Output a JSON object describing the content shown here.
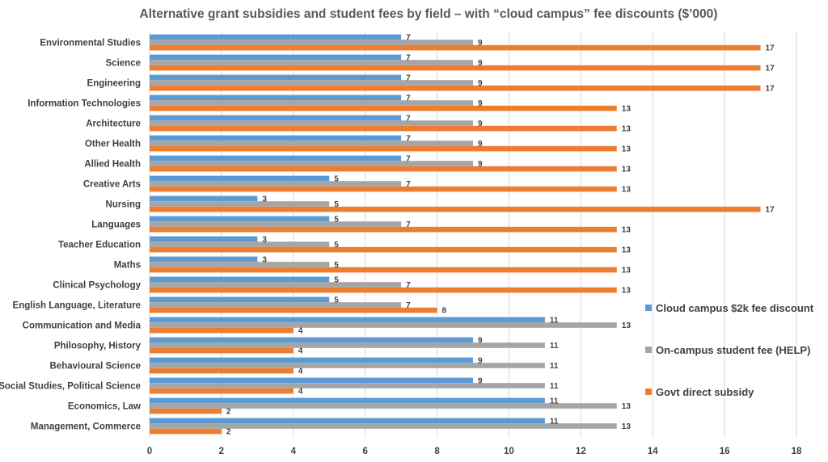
{
  "chart_data": {
    "type": "bar",
    "orientation": "horizontal",
    "title": "Alternative grant subsidies and student fees by field – with “cloud campus” fee discounts ($’000)",
    "xlabel": "",
    "ylabel": "",
    "xlim": [
      0,
      18
    ],
    "xticks": [
      0,
      2,
      4,
      6,
      8,
      10,
      12,
      14,
      16,
      18
    ],
    "grid": true,
    "legend_position": "right",
    "categories": [
      "Environmental Studies",
      "Science",
      "Engineering",
      "Information Technologies",
      "Architecture",
      "Other Health",
      "Allied Health",
      "Creative Arts",
      "Nursing",
      "Languages",
      "Teacher Education",
      "Maths",
      "Clinical Psychology",
      "English Language, Literature",
      "Communication and Media",
      "Philosophy, History",
      "Behavioural Science",
      "Social Studies, Political Science",
      "Economics, Law",
      "Management, Commerce"
    ],
    "series": [
      {
        "name": "Cloud campus $2k fee discount",
        "color": "#5b9bd5",
        "values": [
          7,
          7,
          7,
          7,
          7,
          7,
          7,
          5,
          3,
          5,
          3,
          3,
          5,
          5,
          11,
          9,
          9,
          9,
          11,
          11
        ]
      },
      {
        "name": "On-campus student fee (HELP)",
        "color": "#a5a5a5",
        "values": [
          9,
          9,
          9,
          9,
          9,
          9,
          9,
          7,
          5,
          7,
          5,
          5,
          7,
          7,
          13,
          11,
          11,
          11,
          13,
          13
        ]
      },
      {
        "name": "Govt direct subsidy",
        "color": "#ed7d31",
        "values": [
          17,
          17,
          17,
          13,
          13,
          13,
          13,
          13,
          17,
          13,
          13,
          13,
          13,
          8,
          4,
          4,
          4,
          4,
          2,
          2
        ]
      }
    ]
  }
}
